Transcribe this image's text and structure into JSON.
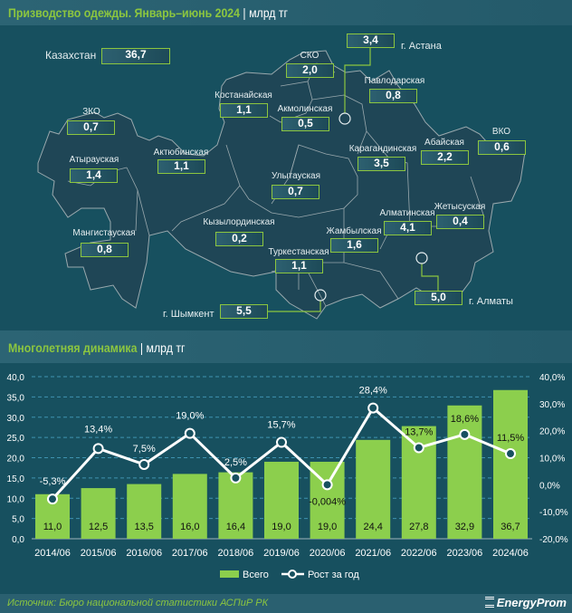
{
  "map_title": {
    "main": "Призводство одежды. Январь–июнь 2024",
    "unit": "млрд тг"
  },
  "total": {
    "label": "Казахстан",
    "value": "36,7"
  },
  "regions": [
    {
      "name": "СКО",
      "value": "2,0"
    },
    {
      "name": "Павлодарская",
      "value": "0,8"
    },
    {
      "name": "Костанайская",
      "value": "1,1"
    },
    {
      "name": "Акмолинская",
      "value": "0,5"
    },
    {
      "name": "ЗКО",
      "value": "0,7"
    },
    {
      "name": "Атырауская",
      "value": "1,4"
    },
    {
      "name": "Актюбинская",
      "value": "1,1"
    },
    {
      "name": "Улытауская",
      "value": "0,7"
    },
    {
      "name": "Карагандинская",
      "value": "3,5"
    },
    {
      "name": "Абайская",
      "value": "2,2"
    },
    {
      "name": "ВКО",
      "value": "0,6"
    },
    {
      "name": "Жетысуская",
      "value": "0,4"
    },
    {
      "name": "Алматинская",
      "value": "4,1"
    },
    {
      "name": "Жамбылская",
      "value": "1,6"
    },
    {
      "name": "Кызылординская",
      "value": "0,2"
    },
    {
      "name": "Мангистауская",
      "value": "0,8"
    },
    {
      "name": "Туркестанская",
      "value": "1,1"
    }
  ],
  "cities": [
    {
      "name": "г. Астана",
      "value": "3,4"
    },
    {
      "name": "г. Алматы",
      "value": "5,0"
    },
    {
      "name": "г. Шымкент",
      "value": "5,5"
    }
  ],
  "chart_title": {
    "main": "Многолетняя динамика",
    "unit": "млрд тг"
  },
  "chart_data": {
    "type": "bar",
    "categories": [
      "2014/06",
      "2015/06",
      "2016/06",
      "2017/06",
      "2018/06",
      "2019/06",
      "2020/06",
      "2021/06",
      "2022/06",
      "2023/06",
      "2024/06"
    ],
    "series": [
      {
        "name": "Всего",
        "type": "bar",
        "axis": "left",
        "values": [
          11.0,
          12.5,
          13.5,
          16.0,
          16.4,
          19.0,
          19.0,
          24.4,
          27.8,
          32.9,
          36.7
        ],
        "labels": [
          "11,0",
          "12,5",
          "13,5",
          "16,0",
          "16,4",
          "19,0",
          "19,0",
          "24,4",
          "27,8",
          "32,9",
          "36,7"
        ],
        "color": "#8ccf4d"
      },
      {
        "name": "Рост за год",
        "type": "line",
        "axis": "right",
        "values": [
          -5.3,
          13.4,
          7.5,
          19.0,
          2.5,
          15.7,
          -0.004,
          28.4,
          13.7,
          18.6,
          11.5
        ],
        "labels": [
          "-5,3%",
          "13,4%",
          "7,5%",
          "19,0%",
          "2,5%",
          "15,7%",
          "-0,004%",
          "28,4%",
          "13,7%",
          "18,6%",
          "11,5%"
        ],
        "color": "#ffffff"
      }
    ],
    "ylim": [
      0,
      40
    ],
    "y_ticks": [
      "0,0",
      "5,0",
      "10,0",
      "15,0",
      "20,0",
      "25,0",
      "30,0",
      "35,0",
      "40,0"
    ],
    "y2lim": [
      -20,
      40
    ],
    "y2_ticks": [
      "-20,0%",
      "-10,0%",
      "0,0%",
      "10,0%",
      "20,0%",
      "30,0%",
      "40,0%"
    ],
    "grid": true,
    "legend": "bottom"
  },
  "source": "Источник: Бюро национальной статистики АСПиР РК",
  "logo": "EnergyProm"
}
